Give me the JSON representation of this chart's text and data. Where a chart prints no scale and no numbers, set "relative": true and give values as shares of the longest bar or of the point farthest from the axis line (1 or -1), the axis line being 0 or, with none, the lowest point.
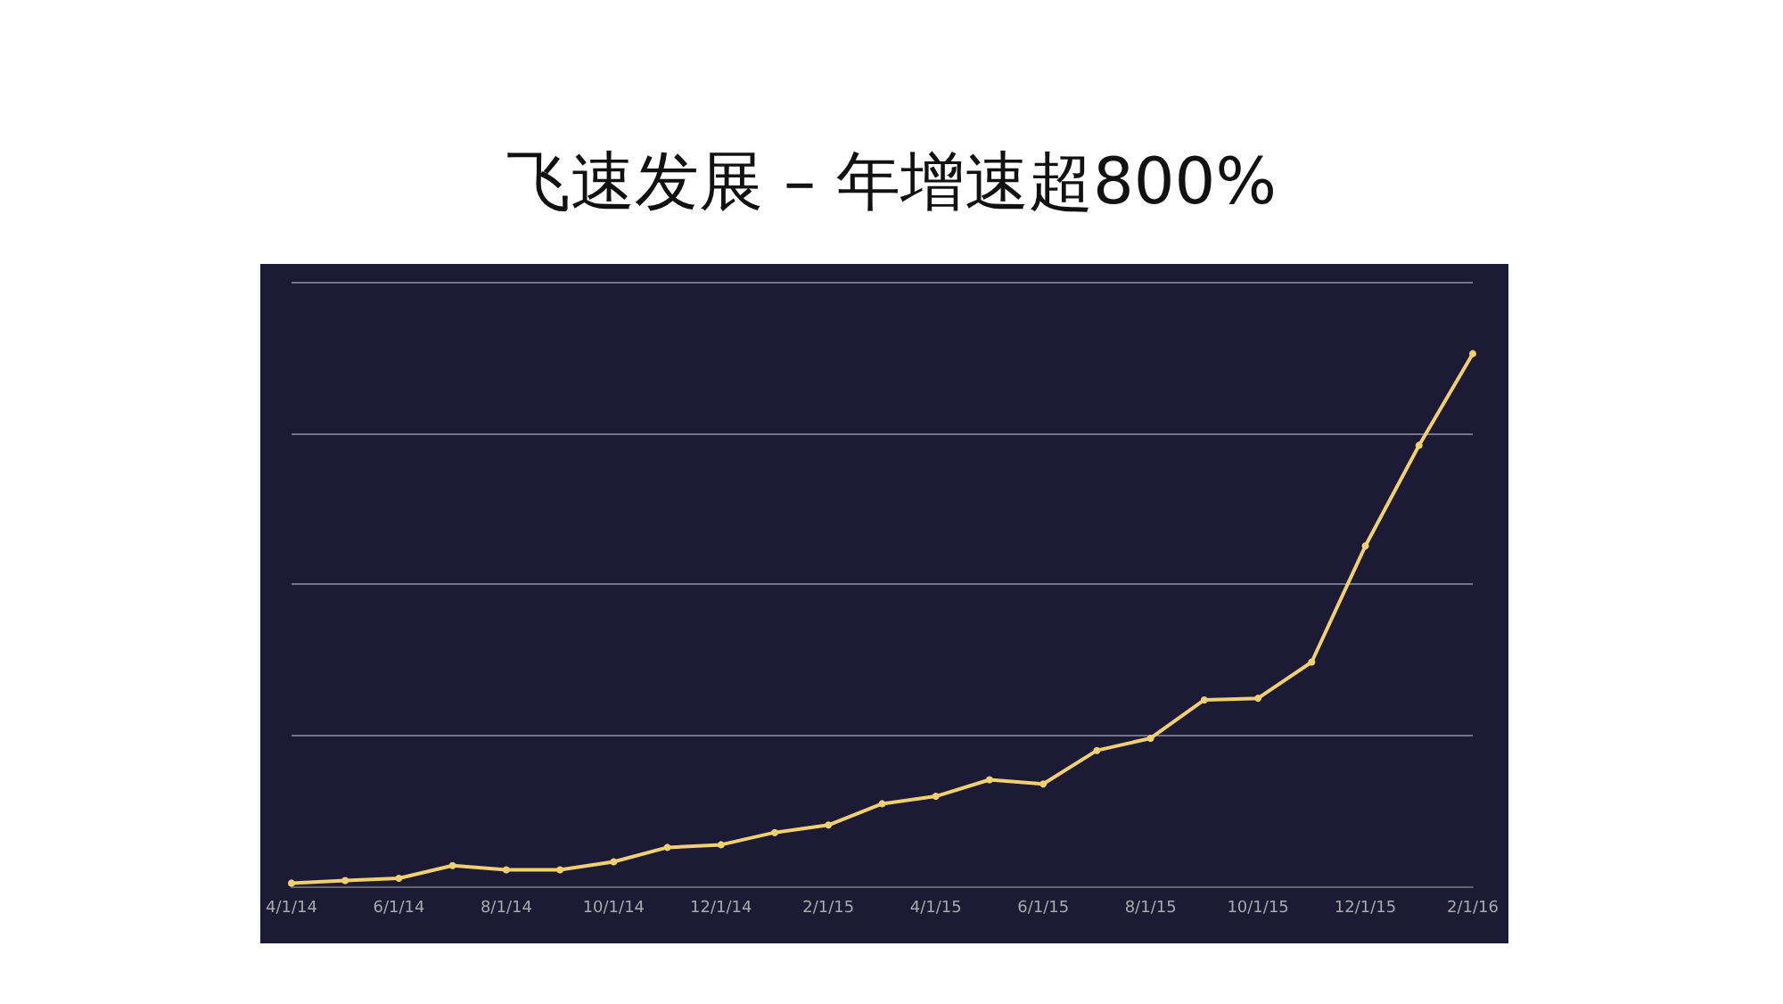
{
  "chart_data": {
    "type": "line",
    "title": "飞速发展 – 年增速超800%",
    "relative": true,
    "grid": "y",
    "marker": "circle",
    "line_style": "solid",
    "categories": [
      "4/1/14",
      null,
      "6/1/14",
      null,
      "8/1/14",
      null,
      "10/1/14",
      null,
      "12/1/14",
      null,
      "2/1/15",
      null,
      "4/1/15",
      null,
      "6/1/15",
      null,
      "8/1/15",
      null,
      "10/1/15",
      null,
      "12/1/15",
      null,
      "2/1/16"
    ],
    "series": [
      {
        "color": "#f0d070",
        "values": [
          0.006,
          0.011,
          0.015,
          0.039,
          0.031,
          0.031,
          0.046,
          0.073,
          0.078,
          0.101,
          0.115,
          0.155,
          0.169,
          0.2,
          0.192,
          0.255,
          0.278,
          0.35,
          0.353,
          0.421,
          0.639,
          0.828,
          1.0
        ]
      }
    ]
  }
}
